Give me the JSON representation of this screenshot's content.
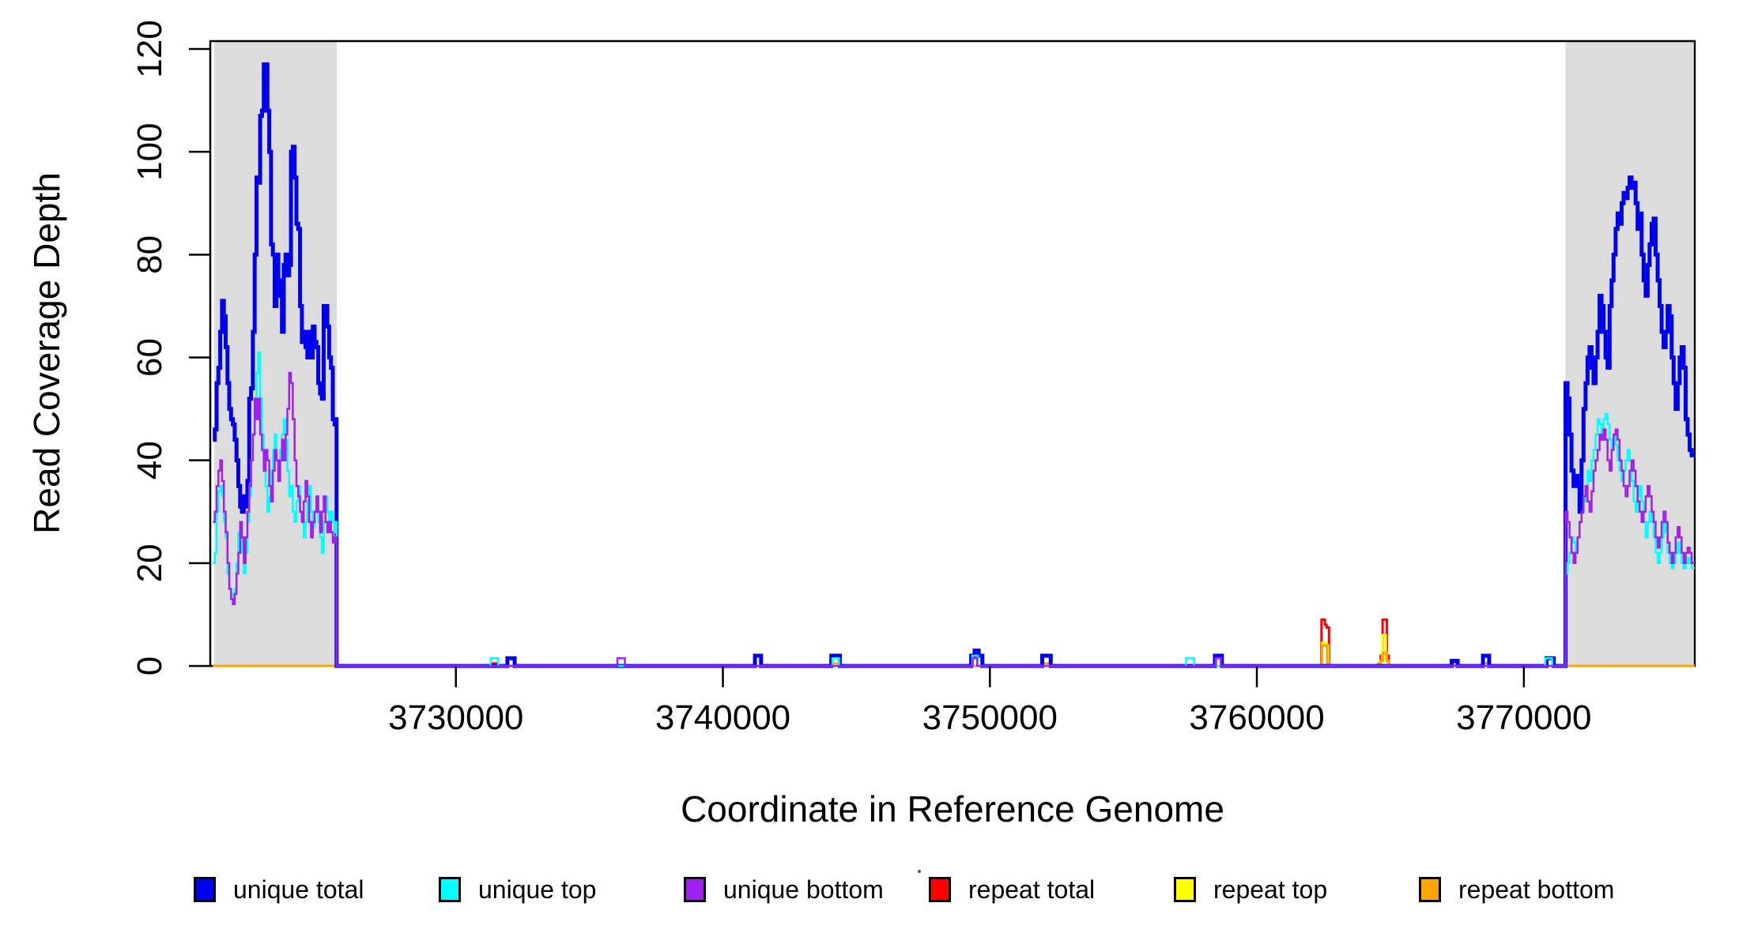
{
  "chart_data": {
    "type": "line",
    "subtype": "step-coverage",
    "xlabel": "Coordinate in Reference Genome",
    "ylabel": "Read Coverage Depth",
    "xlim": [
      3720800,
      3776400
    ],
    "ylim": [
      0,
      120
    ],
    "grid": false,
    "legend_position": "bottom",
    "x_ticks": [
      {
        "v": 3730000,
        "label": "3730000"
      },
      {
        "v": 3740000,
        "label": "3740000"
      },
      {
        "v": 3750000,
        "label": "3750000"
      },
      {
        "v": 3760000,
        "label": "3760000"
      },
      {
        "v": 3770000,
        "label": "3770000"
      }
    ],
    "y_ticks": [
      {
        "v": 0,
        "label": "0"
      },
      {
        "v": 20,
        "label": "20"
      },
      {
        "v": 40,
        "label": "40"
      },
      {
        "v": 60,
        "label": "60"
      },
      {
        "v": 80,
        "label": "80"
      },
      {
        "v": 100,
        "label": "100"
      },
      {
        "v": 120,
        "label": "120"
      }
    ],
    "highlight_regions": [
      {
        "x0": 3720950,
        "x1": 3725540,
        "color": "#DCDCDC"
      },
      {
        "x0": 3771560,
        "x1": 3776340,
        "color": "#DCDCDC"
      }
    ],
    "legend": [
      {
        "label": "unique total",
        "color": "#0000EE"
      },
      {
        "label": "unique top",
        "color": "#00FFFF"
      },
      {
        "label": "unique bottom",
        "color": "#A020F0"
      },
      {
        "label": "repeat total",
        "color": "#FF0000"
      },
      {
        "label": "repeat top",
        "color": "#FFFF00"
      },
      {
        "label": "repeat bottom",
        "color": "#FFA500"
      }
    ],
    "series": [
      {
        "name": "repeat total",
        "color": "#FF0000",
        "lw": 3,
        "segments": [
          {
            "points": [
              [
                3720900,
                0
              ],
              [
                3731350,
                0.5
              ],
              [
                3731560,
                0
              ],
              [
                3762380,
                0
              ],
              [
                3762420,
                9
              ],
              [
                3762550,
                8
              ],
              [
                3762610,
                7.5
              ],
              [
                3762700,
                0
              ],
              [
                3764560,
                0.5
              ],
              [
                3764640,
                2
              ],
              [
                3764710,
                9
              ],
              [
                3764870,
                2
              ],
              [
                3764940,
                0
              ]
            ]
          }
        ]
      },
      {
        "name": "repeat top",
        "color": "#FFFF00",
        "lw": 3,
        "segments": [
          {
            "points": [
              [
                3720900,
                0
              ],
              [
                3762440,
                4.5
              ],
              [
                3762610,
                4
              ],
              [
                3762670,
                0
              ],
              [
                3764620,
                1
              ],
              [
                3764700,
                6
              ],
              [
                3764830,
                1
              ],
              [
                3764890,
                0
              ]
            ]
          }
        ]
      },
      {
        "name": "repeat bottom",
        "color": "#FFA500",
        "lw": 3,
        "segments": [
          {
            "points": [
              [
                3720900,
                0
              ],
              [
                3744110,
                0.5
              ],
              [
                3744330,
                0
              ],
              [
                3752010,
                0.5
              ],
              [
                3752270,
                0
              ],
              [
                3762440,
                4
              ],
              [
                3762630,
                0.5
              ],
              [
                3762690,
                0
              ],
              [
                3764570,
                0.5
              ],
              [
                3764650,
                1
              ],
              [
                3764720,
                2.5
              ],
              [
                3764870,
                1
              ],
              [
                3764930,
                0
              ],
              [
                3767400,
                0.5
              ],
              [
                3767540,
                0
              ],
              [
                3768510,
                0.5
              ],
              [
                3768690,
                0
              ]
            ]
          }
        ]
      },
      {
        "name": "unique total",
        "color": "#0000EE",
        "lw": 5,
        "segments": [
          {
            "x0": 3720900,
            "dx": 68,
            "values": [
              44,
              46,
              55,
              58,
              65,
              71,
              68,
              62,
              55,
              50,
              48,
              47,
              44,
              40,
              35,
              31,
              30,
              33,
              31,
              36,
              52,
              54,
              65,
              80,
              95,
              94,
              107,
              108,
              117,
              117,
              108,
              100,
              82,
              80,
              70,
              80,
              75,
              72,
              65,
              78,
              80,
              76,
              78,
              100,
              101,
              95,
              86,
              85,
              70,
              63,
              65,
              62,
              60,
              65,
              60,
              66,
              63,
              62,
              55,
              53,
              52,
              70,
              70,
              66,
              60,
              58,
              48,
              47,
              48
            ]
          },
          {
            "points": [
              [
                3725532,
                0
              ],
              [
                3731930,
                1.5
              ],
              [
                3732200,
                0
              ],
              [
                3741200,
                2
              ],
              [
                3741430,
                0
              ],
              [
                3744060,
                2
              ],
              [
                3744380,
                0
              ],
              [
                3749300,
                2
              ],
              [
                3749430,
                3
              ],
              [
                3749580,
                2
              ],
              [
                3749720,
                0
              ],
              [
                3751960,
                2
              ],
              [
                3752280,
                0
              ],
              [
                3758430,
                2
              ],
              [
                3758690,
                0
              ],
              [
                3767300,
                1
              ],
              [
                3767520,
                0
              ],
              [
                3768470,
                2
              ],
              [
                3768700,
                0
              ],
              [
                3770850,
                1.5
              ],
              [
                3771120,
                0
              ]
            ]
          },
          {
            "x0": 3771560,
            "dx": 75,
            "values": [
              55,
              52,
              45,
              38,
              35,
              37,
              35,
              30,
              40,
              50,
              55,
              60,
              62,
              58,
              55,
              60,
              65,
              72,
              70,
              65,
              60,
              58,
              70,
              75,
              80,
              85,
              88,
              86,
              90,
              92,
              91,
              93,
              95,
              93,
              94,
              90,
              85,
              88,
              80,
              75,
              72,
              78,
              82,
              86,
              87,
              80,
              75,
              70,
              65,
              62,
              65,
              70,
              68,
              60,
              55,
              50,
              55,
              60,
              62,
              58,
              48,
              45,
              42,
              41
            ]
          }
        ]
      },
      {
        "name": "unique top",
        "color": "#00FFFF",
        "lw": 2.5,
        "segments": [
          {
            "x0": 3720900,
            "dx": 68,
            "values": [
              20,
              22,
              30,
              34,
              35,
              33,
              28,
              25,
              18,
              15,
              14,
              13,
              15,
              20,
              26,
              25,
              22,
              18,
              22,
              28,
              33,
              40,
              45,
              50,
              57,
              61,
              52,
              45,
              40,
              35,
              30,
              33,
              38,
              42,
              45,
              40,
              36,
              42,
              45,
              48,
              44,
              38,
              33,
              35,
              30,
              28,
              32,
              35,
              30,
              28,
              25,
              28,
              32,
              35,
              30,
              27,
              30,
              33,
              28,
              25,
              22,
              28,
              33,
              30,
              28,
              30,
              28,
              26,
              28
            ]
          },
          {
            "points": [
              [
                3725532,
                0
              ],
              [
                3731300,
                1.5
              ],
              [
                3731580,
                0
              ],
              [
                3744100,
                1.5
              ],
              [
                3744350,
                0
              ],
              [
                3749340,
                2
              ],
              [
                3749550,
                0
              ],
              [
                3757350,
                1.5
              ],
              [
                3757650,
                0
              ],
              [
                3770800,
                1.5
              ],
              [
                3771060,
                0
              ]
            ]
          },
          {
            "x0": 3771560,
            "dx": 75,
            "values": [
              18,
              20,
              22,
              25,
              24,
              22,
              25,
              28,
              30,
              32,
              35,
              38,
              36,
              40,
              42,
              45,
              48,
              47,
              45,
              48,
              49,
              47,
              44,
              42,
              45,
              43,
              40,
              38,
              36,
              38,
              40,
              42,
              40,
              36,
              32,
              30,
              33,
              35,
              32,
              28,
              25,
              28,
              30,
              28,
              25,
              22,
              20,
              22,
              25,
              28,
              26,
              22,
              20,
              19,
              20,
              22,
              24,
              22,
              20,
              19,
              20,
              21,
              20,
              19
            ]
          }
        ]
      },
      {
        "name": "unique bottom",
        "color": "#A020F0",
        "lw": 2.5,
        "segments": [
          {
            "x0": 3720900,
            "dx": 68,
            "values": [
              28,
              30,
              35,
              38,
              40,
              36,
              30,
              26,
              20,
              15,
              13,
              12,
              14,
              18,
              22,
              28,
              25,
              20,
              25,
              30,
              35,
              40,
              45,
              52,
              48,
              52,
              45,
              42,
              38,
              42,
              40,
              35,
              32,
              38,
              42,
              40,
              36,
              40,
              44,
              40,
              45,
              50,
              57,
              55,
              48,
              40,
              35,
              33,
              30,
              28,
              32,
              36,
              33,
              28,
              25,
              28,
              30,
              33,
              30,
              26,
              30,
              33,
              28,
              26,
              28,
              26,
              24,
              25,
              24
            ]
          },
          {
            "points": [
              [
                3725532,
                0
              ],
              [
                3736050,
                1.5
              ],
              [
                3736330,
                0
              ],
              [
                3749360,
                1.5
              ],
              [
                3749520,
                0
              ],
              [
                3758450,
                1.5
              ],
              [
                3758650,
                0
              ]
            ]
          },
          {
            "x0": 3771560,
            "dx": 75,
            "values": [
              30,
              28,
              25,
              22,
              20,
              22,
              25,
              28,
              30,
              33,
              35,
              32,
              30,
              34,
              38,
              40,
              42,
              45,
              44,
              46,
              44,
              40,
              38,
              42,
              45,
              46,
              44,
              40,
              38,
              35,
              33,
              35,
              38,
              40,
              38,
              35,
              32,
              30,
              28,
              30,
              33,
              35,
              33,
              30,
              28,
              25,
              23,
              25,
              28,
              30,
              28,
              24,
              22,
              20,
              22,
              25,
              27,
              25,
              22,
              20,
              22,
              23,
              22,
              20
            ]
          }
        ]
      }
    ]
  }
}
